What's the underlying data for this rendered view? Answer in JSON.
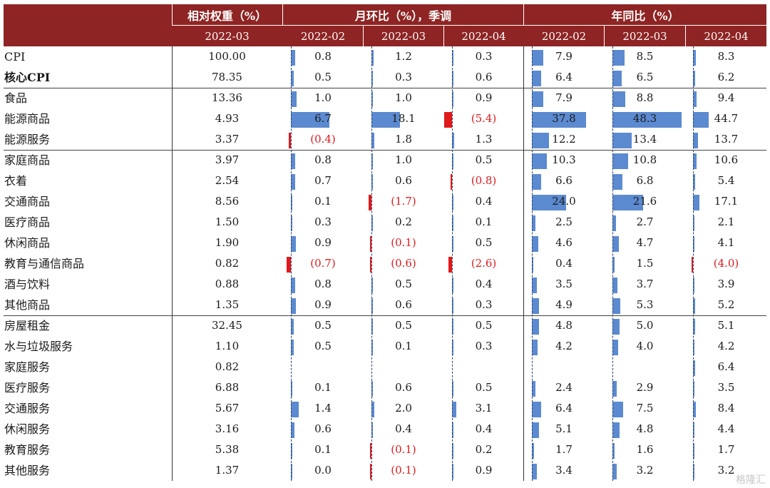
{
  "header": {
    "col1": "相对权重（%）",
    "group_mom": "月环比（%），季调",
    "group_yoy": "年同比（%）",
    "weight_month": "2022-03",
    "mom_months": [
      "2022-02",
      "2022-03",
      "2022-04"
    ],
    "yoy_months": [
      "2022-02",
      "2022-03",
      "2022-04"
    ]
  },
  "colors": {
    "header_bg": "#8e2423",
    "pos_bar": "#5b8ad0",
    "neg_bar": "#e0191b",
    "neg_text": "#e0191b"
  },
  "watermark": "格隆汇",
  "rows": [
    {
      "label": "CPI",
      "bold": false,
      "weight": "100.00",
      "mom": [
        0.8,
        1.2,
        0.3
      ],
      "yoy": [
        7.9,
        8.5,
        8.3
      ]
    },
    {
      "label": "核心CPI",
      "bold": true,
      "weight": "78.35",
      "mom": [
        0.5,
        0.3,
        0.6
      ],
      "yoy": [
        6.4,
        6.5,
        6.2
      ]
    },
    {
      "label": "食品",
      "bold": false,
      "weight": "13.36",
      "mom": [
        1.0,
        1.0,
        0.9
      ],
      "yoy": [
        7.9,
        8.8,
        9.4
      ]
    },
    {
      "label": "能源商品",
      "bold": false,
      "weight": "4.93",
      "mom": [
        6.7,
        18.1,
        -5.4
      ],
      "yoy": [
        37.8,
        48.3,
        44.7
      ]
    },
    {
      "label": "能源服务",
      "bold": false,
      "weight": "3.37",
      "mom": [
        -0.4,
        1.8,
        1.3
      ],
      "yoy": [
        12.2,
        13.4,
        13.7
      ]
    },
    {
      "label": "家庭商品",
      "bold": false,
      "weight": "3.97",
      "mom": [
        0.8,
        1.0,
        0.5
      ],
      "yoy": [
        10.3,
        10.8,
        10.6
      ]
    },
    {
      "label": "衣着",
      "bold": false,
      "weight": "2.54",
      "mom": [
        0.7,
        0.6,
        -0.8
      ],
      "yoy": [
        6.6,
        6.8,
        5.4
      ]
    },
    {
      "label": "交通商品",
      "bold": false,
      "weight": "8.56",
      "mom": [
        0.1,
        -1.7,
        0.4
      ],
      "yoy": [
        24.0,
        21.6,
        17.1
      ]
    },
    {
      "label": "医疗商品",
      "bold": false,
      "weight": "1.50",
      "mom": [
        0.3,
        0.2,
        0.1
      ],
      "yoy": [
        2.5,
        2.7,
        2.1
      ]
    },
    {
      "label": "休闲商品",
      "bold": false,
      "weight": "1.90",
      "mom": [
        0.9,
        -0.1,
        0.5
      ],
      "yoy": [
        4.6,
        4.7,
        4.1
      ]
    },
    {
      "label": "教育与通信商品",
      "bold": false,
      "weight": "0.82",
      "mom": [
        -0.7,
        -0.6,
        -2.6
      ],
      "yoy": [
        0.4,
        1.5,
        -4.0
      ]
    },
    {
      "label": "酒与饮料",
      "bold": false,
      "weight": "0.88",
      "mom": [
        0.8,
        0.5,
        0.4
      ],
      "yoy": [
        3.5,
        3.7,
        3.9
      ]
    },
    {
      "label": "其他商品",
      "bold": false,
      "weight": "1.35",
      "mom": [
        0.9,
        0.6,
        0.3
      ],
      "yoy": [
        4.9,
        5.3,
        5.2
      ]
    },
    {
      "label": "房屋租金",
      "bold": false,
      "weight": "32.45",
      "mom": [
        0.5,
        0.5,
        0.5
      ],
      "yoy": [
        4.8,
        5.0,
        5.1
      ]
    },
    {
      "label": "水与垃圾服务",
      "bold": false,
      "weight": "1.10",
      "mom": [
        0.5,
        0.1,
        0.3
      ],
      "yoy": [
        4.2,
        4.0,
        4.2
      ]
    },
    {
      "label": "家庭服务",
      "bold": false,
      "weight": "0.82",
      "mom": [
        null,
        null,
        null
      ],
      "yoy": [
        null,
        null,
        6.4
      ]
    },
    {
      "label": "医疗服务",
      "bold": false,
      "weight": "6.88",
      "mom": [
        0.1,
        0.6,
        0.5
      ],
      "yoy": [
        2.4,
        2.9,
        3.5
      ]
    },
    {
      "label": "交通服务",
      "bold": false,
      "weight": "5.67",
      "mom": [
        1.4,
        2.0,
        3.1
      ],
      "yoy": [
        6.4,
        7.5,
        8.4
      ]
    },
    {
      "label": "休闲服务",
      "bold": false,
      "weight": "3.16",
      "mom": [
        0.6,
        0.4,
        0.4
      ],
      "yoy": [
        5.1,
        4.8,
        4.4
      ]
    },
    {
      "label": "教育服务",
      "bold": false,
      "weight": "5.38",
      "mom": [
        0.1,
        -0.1,
        0.2
      ],
      "yoy": [
        1.7,
        1.6,
        1.7
      ]
    },
    {
      "label": "其他服务",
      "bold": false,
      "weight": "1.37",
      "mom": [
        0.0,
        -0.1,
        0.9
      ],
      "yoy": [
        3.4,
        3.2,
        3.2
      ]
    }
  ]
}
